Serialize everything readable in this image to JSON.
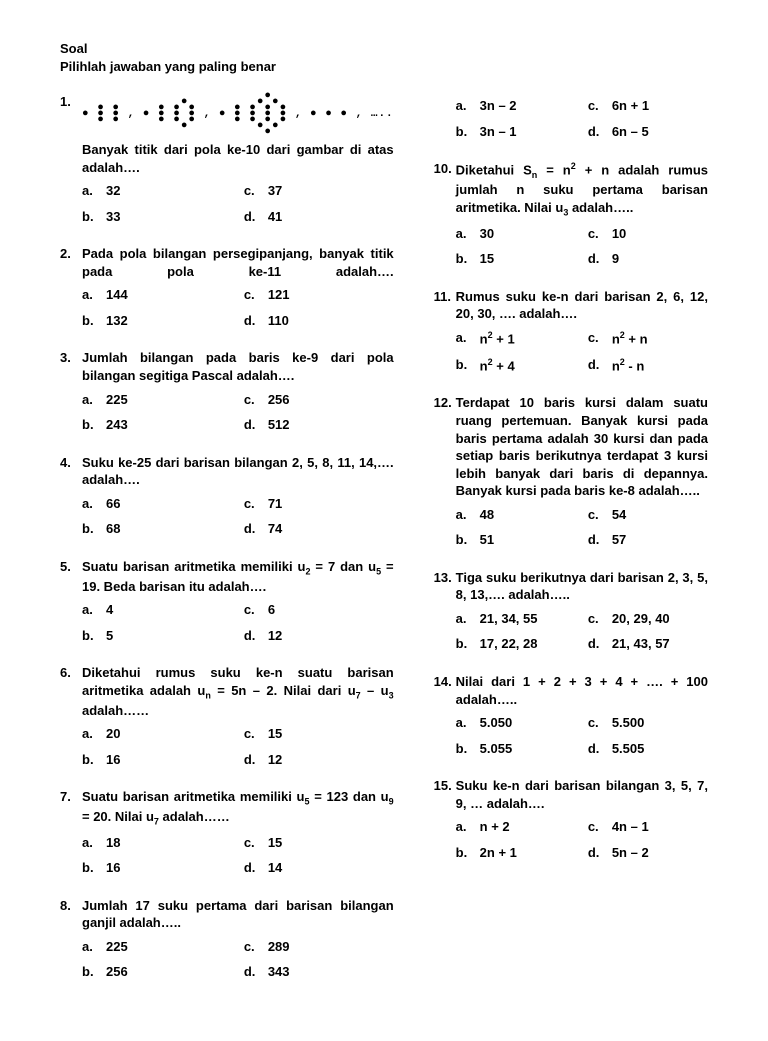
{
  "header1": "Soal",
  "header2": "Pilihlah jawaban yang paling benar",
  "left": [
    {
      "num": "1.",
      "dotpattern": true,
      "text": "Banyak titik dari pola ke-10 dari gambar di atas adalah….",
      "opts": {
        "a": "32",
        "b": "33",
        "c": "37",
        "d": "41"
      }
    },
    {
      "num": "2.",
      "text": "Pada pola bilangan persegipanjang, banyak titik pada pola ke-11 adalah….",
      "justify": true,
      "opts": {
        "a": "144",
        "b": "132",
        "c": "121",
        "d": "110"
      }
    },
    {
      "num": "3.",
      "text": "Jumlah bilangan pada baris ke-9 dari pola bilangan segitiga Pascal adalah….",
      "opts": {
        "a": "225",
        "b": "243",
        "c": "256",
        "d": "512"
      }
    },
    {
      "num": "4.",
      "text": "Suku ke-25 dari barisan bilangan 2, 5, 8, 11, 14,…. adalah….",
      "opts": {
        "a": "66",
        "b": "68",
        "c": "71",
        "d": "74"
      }
    },
    {
      "num": "5.",
      "html": "Suatu barisan aritmetika memiliki u<span class='sub'>2</span> = 7 dan u<span class='sub'>5</span> = 19. Beda barisan itu adalah….",
      "opts": {
        "a": "4",
        "b": "5",
        "c": "6",
        "d": "12"
      }
    },
    {
      "num": "6.",
      "html": "Diketahui rumus suku ke-n suatu barisan aritmetika adalah u<span class='sub'>n</span> = 5n – 2. Nilai dari u<span class='sub'>7</span> – u<span class='sub'>3</span> adalah……",
      "opts": {
        "a": "20",
        "b": "16",
        "c": "15",
        "d": "12"
      }
    },
    {
      "num": "7.",
      "html": "Suatu barisan aritmetika memiliki u<span class='sub'>5</span> = 123 dan u<span class='sub'>9</span> = 20. Nilai u<span class='sub'>7</span> adalah……",
      "opts": {
        "a": "18",
        "b": "16",
        "c": "15",
        "d": "14"
      }
    },
    {
      "num": "8.",
      "text": "Jumlah 17 suku pertama dari barisan bilangan ganjil adalah…..",
      "opts": {
        "a": "225",
        "b": "256",
        "c": "289",
        "d": "343"
      }
    }
  ],
  "right": [
    {
      "num": "",
      "optsonly": true,
      "opts": {
        "a": "3n – 2",
        "b": "3n – 1",
        "c": "6n + 1",
        "d": "6n – 5"
      }
    },
    {
      "num": "10.",
      "html": "Diketahui S<span class='sub'>n</span> = n<span class='sup'>2</span> + n adalah rumus jumlah n suku pertama barisan aritmetika. Nilai u<span class='sub'>3</span> adalah…..",
      "opts": {
        "a": "30",
        "b": "15",
        "c": "10",
        "d": "9"
      }
    },
    {
      "num": "11.",
      "text": "Rumus suku ke-n dari barisan 2, 6, 12, 20, 30, …. adalah….",
      "opts_html": {
        "a": "n<span class='sup'>2</span> + 1",
        "b": "n<span class='sup'>2</span> + 4",
        "c": "n<span class='sup'>2</span> + n",
        "d": "n<span class='sup'>2</span> - n"
      }
    },
    {
      "num": "12.",
      "text": "Terdapat 10 baris kursi dalam suatu ruang pertemuan. Banyak kursi pada baris pertama adalah 30 kursi dan pada setiap baris berikutnya terdapat 3 kursi lebih banyak dari baris di depannya. Banyak kursi pada baris ke-8 adalah…..",
      "opts": {
        "a": "48",
        "b": "51",
        "c": "54",
        "d": "57"
      }
    },
    {
      "num": "13.",
      "text": "Tiga suku berikutnya dari barisan 2, 3, 5, 8, 13,…. adalah…..",
      "opts": {
        "a": "21, 34, 55",
        "b": "17, 22, 28",
        "c": "20, 29, 40",
        "d": "21, 43, 57"
      }
    },
    {
      "num": "14.",
      "text": "Nilai dari 1 + 2 + 3 + 4 + …. + 100 adalah…..",
      "opts": {
        "a": "5.050",
        "b": "5.055",
        "c": "5.500",
        "d": "5.505"
      }
    },
    {
      "num": "15.",
      "text": "Suku ke-n dari barisan bilangan 3, 5, 7, 9, … adalah….",
      "opts": {
        "a": "n + 2",
        "b": "2n + 1",
        "c": "4n – 1",
        "d": "5n – 2"
      }
    }
  ]
}
